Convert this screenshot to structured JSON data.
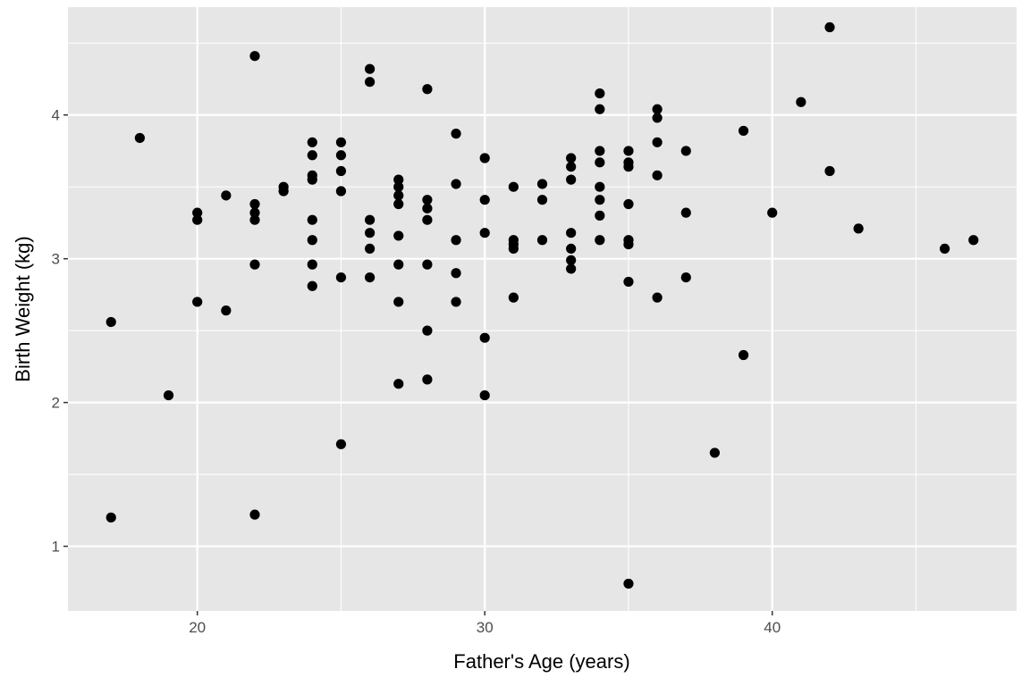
{
  "chart_data": {
    "type": "scatter",
    "title": "",
    "xlabel": "Father's Age (years)",
    "ylabel": "Birth Weight (kg)",
    "xlim": [
      15.5,
      48.5
    ],
    "ylim": [
      0.55,
      4.75
    ],
    "x_ticks": [
      20,
      30,
      40
    ],
    "y_ticks": [
      1,
      2,
      3,
      4
    ],
    "x_minor": [
      15,
      25,
      35,
      45
    ],
    "y_minor": [
      1.5,
      2.5,
      3.5,
      4.5
    ],
    "grid": true,
    "legend": "none",
    "colors": {
      "panel": "#e6e6e6",
      "grid": "#ffffff",
      "point": "#000000"
    },
    "points": [
      [
        17,
        2.56
      ],
      [
        17,
        1.2
      ],
      [
        18,
        3.84
      ],
      [
        19,
        2.05
      ],
      [
        20,
        3.32
      ],
      [
        20,
        3.27
      ],
      [
        20,
        2.7
      ],
      [
        21,
        3.44
      ],
      [
        21,
        2.64
      ],
      [
        22,
        4.41
      ],
      [
        22,
        3.38
      ],
      [
        22,
        3.32
      ],
      [
        22,
        3.27
      ],
      [
        22,
        2.96
      ],
      [
        22,
        1.22
      ],
      [
        23,
        3.5
      ],
      [
        23,
        3.47
      ],
      [
        24,
        3.81
      ],
      [
        24,
        3.72
      ],
      [
        24,
        3.58
      ],
      [
        24,
        3.55
      ],
      [
        24,
        3.27
      ],
      [
        24,
        3.13
      ],
      [
        24,
        2.96
      ],
      [
        24,
        2.81
      ],
      [
        25,
        3.81
      ],
      [
        25,
        3.72
      ],
      [
        25,
        3.61
      ],
      [
        25,
        3.47
      ],
      [
        25,
        2.87
      ],
      [
        25,
        1.71
      ],
      [
        26,
        4.32
      ],
      [
        26,
        4.23
      ],
      [
        26,
        3.27
      ],
      [
        26,
        3.18
      ],
      [
        26,
        3.07
      ],
      [
        26,
        2.87
      ],
      [
        27,
        3.55
      ],
      [
        27,
        3.5
      ],
      [
        27,
        3.44
      ],
      [
        27,
        3.38
      ],
      [
        27,
        3.16
      ],
      [
        27,
        2.96
      ],
      [
        27,
        2.7
      ],
      [
        27,
        2.13
      ],
      [
        28,
        4.18
      ],
      [
        28,
        3.41
      ],
      [
        28,
        3.35
      ],
      [
        28,
        3.27
      ],
      [
        28,
        2.96
      ],
      [
        28,
        2.5
      ],
      [
        28,
        2.16
      ],
      [
        29,
        3.87
      ],
      [
        29,
        3.52
      ],
      [
        29,
        3.13
      ],
      [
        29,
        2.9
      ],
      [
        29,
        2.7
      ],
      [
        30,
        3.7
      ],
      [
        30,
        3.41
      ],
      [
        30,
        3.18
      ],
      [
        30,
        2.45
      ],
      [
        30,
        2.05
      ],
      [
        31,
        3.5
      ],
      [
        31,
        3.13
      ],
      [
        31,
        3.1
      ],
      [
        31,
        3.07
      ],
      [
        31,
        2.73
      ],
      [
        32,
        3.52
      ],
      [
        32,
        3.41
      ],
      [
        32,
        3.13
      ],
      [
        33,
        3.7
      ],
      [
        33,
        3.64
      ],
      [
        33,
        3.55
      ],
      [
        33,
        3.18
      ],
      [
        33,
        3.07
      ],
      [
        33,
        2.99
      ],
      [
        33,
        2.93
      ],
      [
        34,
        4.15
      ],
      [
        34,
        4.04
      ],
      [
        34,
        3.75
      ],
      [
        34,
        3.67
      ],
      [
        34,
        3.5
      ],
      [
        34,
        3.41
      ],
      [
        34,
        3.3
      ],
      [
        34,
        3.13
      ],
      [
        35,
        3.75
      ],
      [
        35,
        3.67
      ],
      [
        35,
        3.64
      ],
      [
        35,
        3.38
      ],
      [
        35,
        3.13
      ],
      [
        35,
        3.1
      ],
      [
        35,
        2.84
      ],
      [
        35,
        0.74
      ],
      [
        36,
        4.04
      ],
      [
        36,
        3.98
      ],
      [
        36,
        3.81
      ],
      [
        36,
        3.58
      ],
      [
        36,
        2.73
      ],
      [
        37,
        3.75
      ],
      [
        37,
        3.32
      ],
      [
        37,
        2.87
      ],
      [
        38,
        1.65
      ],
      [
        39,
        3.89
      ],
      [
        39,
        2.33
      ],
      [
        40,
        3.32
      ],
      [
        41,
        4.09
      ],
      [
        42,
        4.61
      ],
      [
        42,
        3.61
      ],
      [
        43,
        3.21
      ],
      [
        46,
        3.07
      ],
      [
        47,
        3.13
      ]
    ]
  }
}
